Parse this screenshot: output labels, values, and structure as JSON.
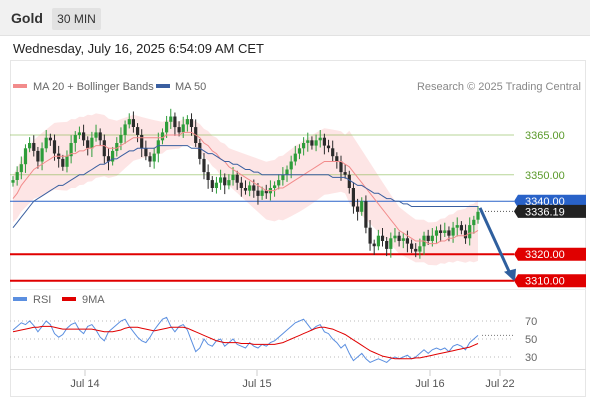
{
  "header": {
    "symbol": "Gold",
    "timeframe": "30 MIN",
    "datetime": "Wednesday, July 16, 2025 6:54:09 AM CET"
  },
  "chart_data": [
    {
      "type": "candlestick",
      "legend": [
        {
          "name": "MA 20 + Bollinger Bands",
          "color": "#f28b8b"
        },
        {
          "name": "MA 50",
          "color": "#3a5fa0"
        }
      ],
      "credit": "Research © 2025 Trading Central",
      "ylim": [
        3308,
        3382
      ],
      "price_levels": [
        {
          "label": "3365.00",
          "value": 3365,
          "kind": "resistance",
          "color": "#7cb342"
        },
        {
          "label": "3350.00",
          "value": 3350,
          "kind": "resistance",
          "color": "#7cb342"
        },
        {
          "label": "3340.00",
          "value": 3340,
          "kind": "pivot",
          "color": "#2962c8"
        },
        {
          "label": "3320.00",
          "value": 3320,
          "kind": "support",
          "color": "#e00000"
        },
        {
          "label": "3310.00",
          "value": 3310,
          "kind": "support",
          "color": "#e00000"
        }
      ],
      "current_price": {
        "label": "3336.19",
        "value": 3336.19
      },
      "forecast_arrow": {
        "from": 3337.5,
        "to": 3310
      },
      "x_ticks": [
        "Jul 14",
        "Jul 15",
        "Jul 16",
        "Jul 22"
      ],
      "close": [
        3348,
        3351,
        3354,
        3360,
        3362,
        3359,
        3355,
        3360,
        3364,
        3363,
        3358,
        3356,
        3353,
        3357,
        3362,
        3365,
        3366,
        3363,
        3360,
        3364,
        3366,
        3363,
        3357,
        3355,
        3359,
        3362,
        3365,
        3369,
        3371,
        3368,
        3365,
        3360,
        3357,
        3355,
        3358,
        3363,
        3366,
        3370,
        3372,
        3368,
        3366,
        3369,
        3371,
        3368,
        3362,
        3356,
        3351,
        3348,
        3345,
        3347,
        3349,
        3346,
        3348,
        3350,
        3347,
        3345,
        3344,
        3346,
        3344,
        3342,
        3344,
        3343,
        3345,
        3346,
        3348,
        3350,
        3352,
        3355,
        3358,
        3360,
        3362,
        3363,
        3361,
        3363,
        3364,
        3361,
        3360,
        3357,
        3355,
        3351,
        3350,
        3345,
        3338,
        3336,
        3340,
        3330,
        3324,
        3323,
        3327,
        3325,
        3322,
        3326,
        3327,
        3325,
        3326,
        3324,
        3322,
        3321,
        3323,
        3327,
        3325,
        3327,
        3329,
        3328,
        3329,
        3327,
        3330,
        3331,
        3329,
        3326,
        3331,
        3333,
        3336
      ],
      "ma20": [
        3341,
        3343,
        3346,
        3348,
        3350,
        3352,
        3353,
        3354,
        3355,
        3356,
        3357,
        3357,
        3357,
        3357,
        3358,
        3358,
        3359,
        3359,
        3360,
        3360,
        3361,
        3361,
        3361,
        3360,
        3360,
        3360,
        3361,
        3362,
        3363,
        3364,
        3364,
        3364,
        3364,
        3364,
        3364,
        3364,
        3364,
        3365,
        3365,
        3365,
        3365,
        3366,
        3366,
        3366,
        3365,
        3364,
        3362,
        3361,
        3359,
        3358,
        3356,
        3355,
        3353,
        3352,
        3351,
        3350,
        3349,
        3348,
        3347,
        3346,
        3345,
        3344,
        3344,
        3344,
        3345,
        3345,
        3346,
        3347,
        3348,
        3349,
        3350,
        3351,
        3352,
        3353,
        3354,
        3355,
        3355,
        3355,
        3355,
        3355,
        3354,
        3353,
        3351,
        3349,
        3347,
        3345,
        3343,
        3341,
        3339,
        3337,
        3335,
        3333,
        3331,
        3329,
        3328,
        3327,
        3326,
        3325,
        3325,
        3325,
        3324,
        3324,
        3324,
        3325,
        3325,
        3326,
        3326,
        3327,
        3327,
        3327,
        3328,
        3328,
        3329
      ],
      "ma50": [
        3330,
        3332,
        3334,
        3336,
        3338,
        3340,
        3341,
        3342,
        3343,
        3344,
        3345,
        3346,
        3346,
        3347,
        3348,
        3349,
        3350,
        3350,
        3351,
        3352,
        3353,
        3354,
        3354,
        3355,
        3356,
        3356,
        3357,
        3358,
        3359,
        3359,
        3360,
        3360,
        3360,
        3360,
        3360,
        3361,
        3361,
        3361,
        3361,
        3361,
        3361,
        3361,
        3361,
        3360,
        3360,
        3360,
        3359,
        3358,
        3358,
        3357,
        3356,
        3355,
        3355,
        3354,
        3354,
        3353,
        3352,
        3352,
        3351,
        3351,
        3350,
        3350,
        3350,
        3350,
        3350,
        3350,
        3350,
        3350,
        3350,
        3350,
        3350,
        3350,
        3350,
        3350,
        3350,
        3350,
        3350,
        3349,
        3349,
        3349,
        3349,
        3348,
        3347,
        3346,
        3346,
        3345,
        3344,
        3343,
        3343,
        3342,
        3341,
        3341,
        3340,
        3340,
        3339,
        3339,
        3338,
        3338,
        3338,
        3338,
        3338,
        3338,
        3338,
        3338,
        3338,
        3338,
        3338,
        3338,
        3338,
        3338,
        3338,
        3338,
        3338
      ]
    },
    {
      "type": "line",
      "legend": [
        {
          "name": "RSI",
          "color": "#5b8fe0"
        },
        {
          "name": "9MA",
          "color": "#e00000"
        }
      ],
      "yticks": [
        70,
        50,
        30
      ],
      "ylim": [
        20,
        80
      ],
      "rsi": [
        60,
        64,
        68,
        66,
        70,
        65,
        58,
        64,
        70,
        66,
        56,
        52,
        55,
        62,
        66,
        68,
        60,
        56,
        64,
        66,
        60,
        52,
        48,
        58,
        62,
        66,
        70,
        72,
        64,
        58,
        52,
        48,
        46,
        52,
        60,
        66,
        72,
        74,
        64,
        58,
        64,
        66,
        60,
        48,
        36,
        40,
        50,
        44,
        42,
        48,
        50,
        42,
        46,
        50,
        44,
        42,
        40,
        46,
        42,
        40,
        44,
        42,
        46,
        48,
        52,
        56,
        60,
        64,
        68,
        70,
        72,
        66,
        60,
        64,
        66,
        58,
        56,
        50,
        46,
        40,
        44,
        34,
        26,
        30,
        34,
        28,
        24,
        26,
        28,
        26,
        24,
        28,
        30,
        28,
        30,
        32,
        28,
        30,
        34,
        38,
        34,
        38,
        40,
        38,
        40,
        36,
        42,
        44,
        42,
        38,
        46,
        50,
        54
      ],
      "ma9": [
        58,
        59,
        60,
        61,
        62,
        63,
        63,
        64,
        64,
        64,
        63,
        62,
        61,
        61,
        61,
        61,
        61,
        61,
        61,
        61,
        60,
        59,
        58,
        58,
        58,
        59,
        60,
        62,
        63,
        63,
        63,
        62,
        61,
        60,
        59,
        60,
        61,
        62,
        63,
        63,
        63,
        63,
        62,
        60,
        58,
        56,
        54,
        52,
        50,
        48,
        47,
        46,
        46,
        46,
        46,
        45,
        45,
        45,
        44,
        44,
        44,
        44,
        44,
        44,
        45,
        46,
        48,
        50,
        52,
        54,
        56,
        58,
        60,
        62,
        63,
        63,
        62,
        61,
        59,
        57,
        55,
        52,
        49,
        46,
        43,
        40,
        37,
        35,
        33,
        31,
        30,
        29,
        28,
        28,
        28,
        28,
        28,
        29,
        29,
        30,
        31,
        32,
        33,
        34,
        35,
        36,
        37,
        38,
        39,
        40,
        41,
        43,
        45
      ]
    }
  ]
}
